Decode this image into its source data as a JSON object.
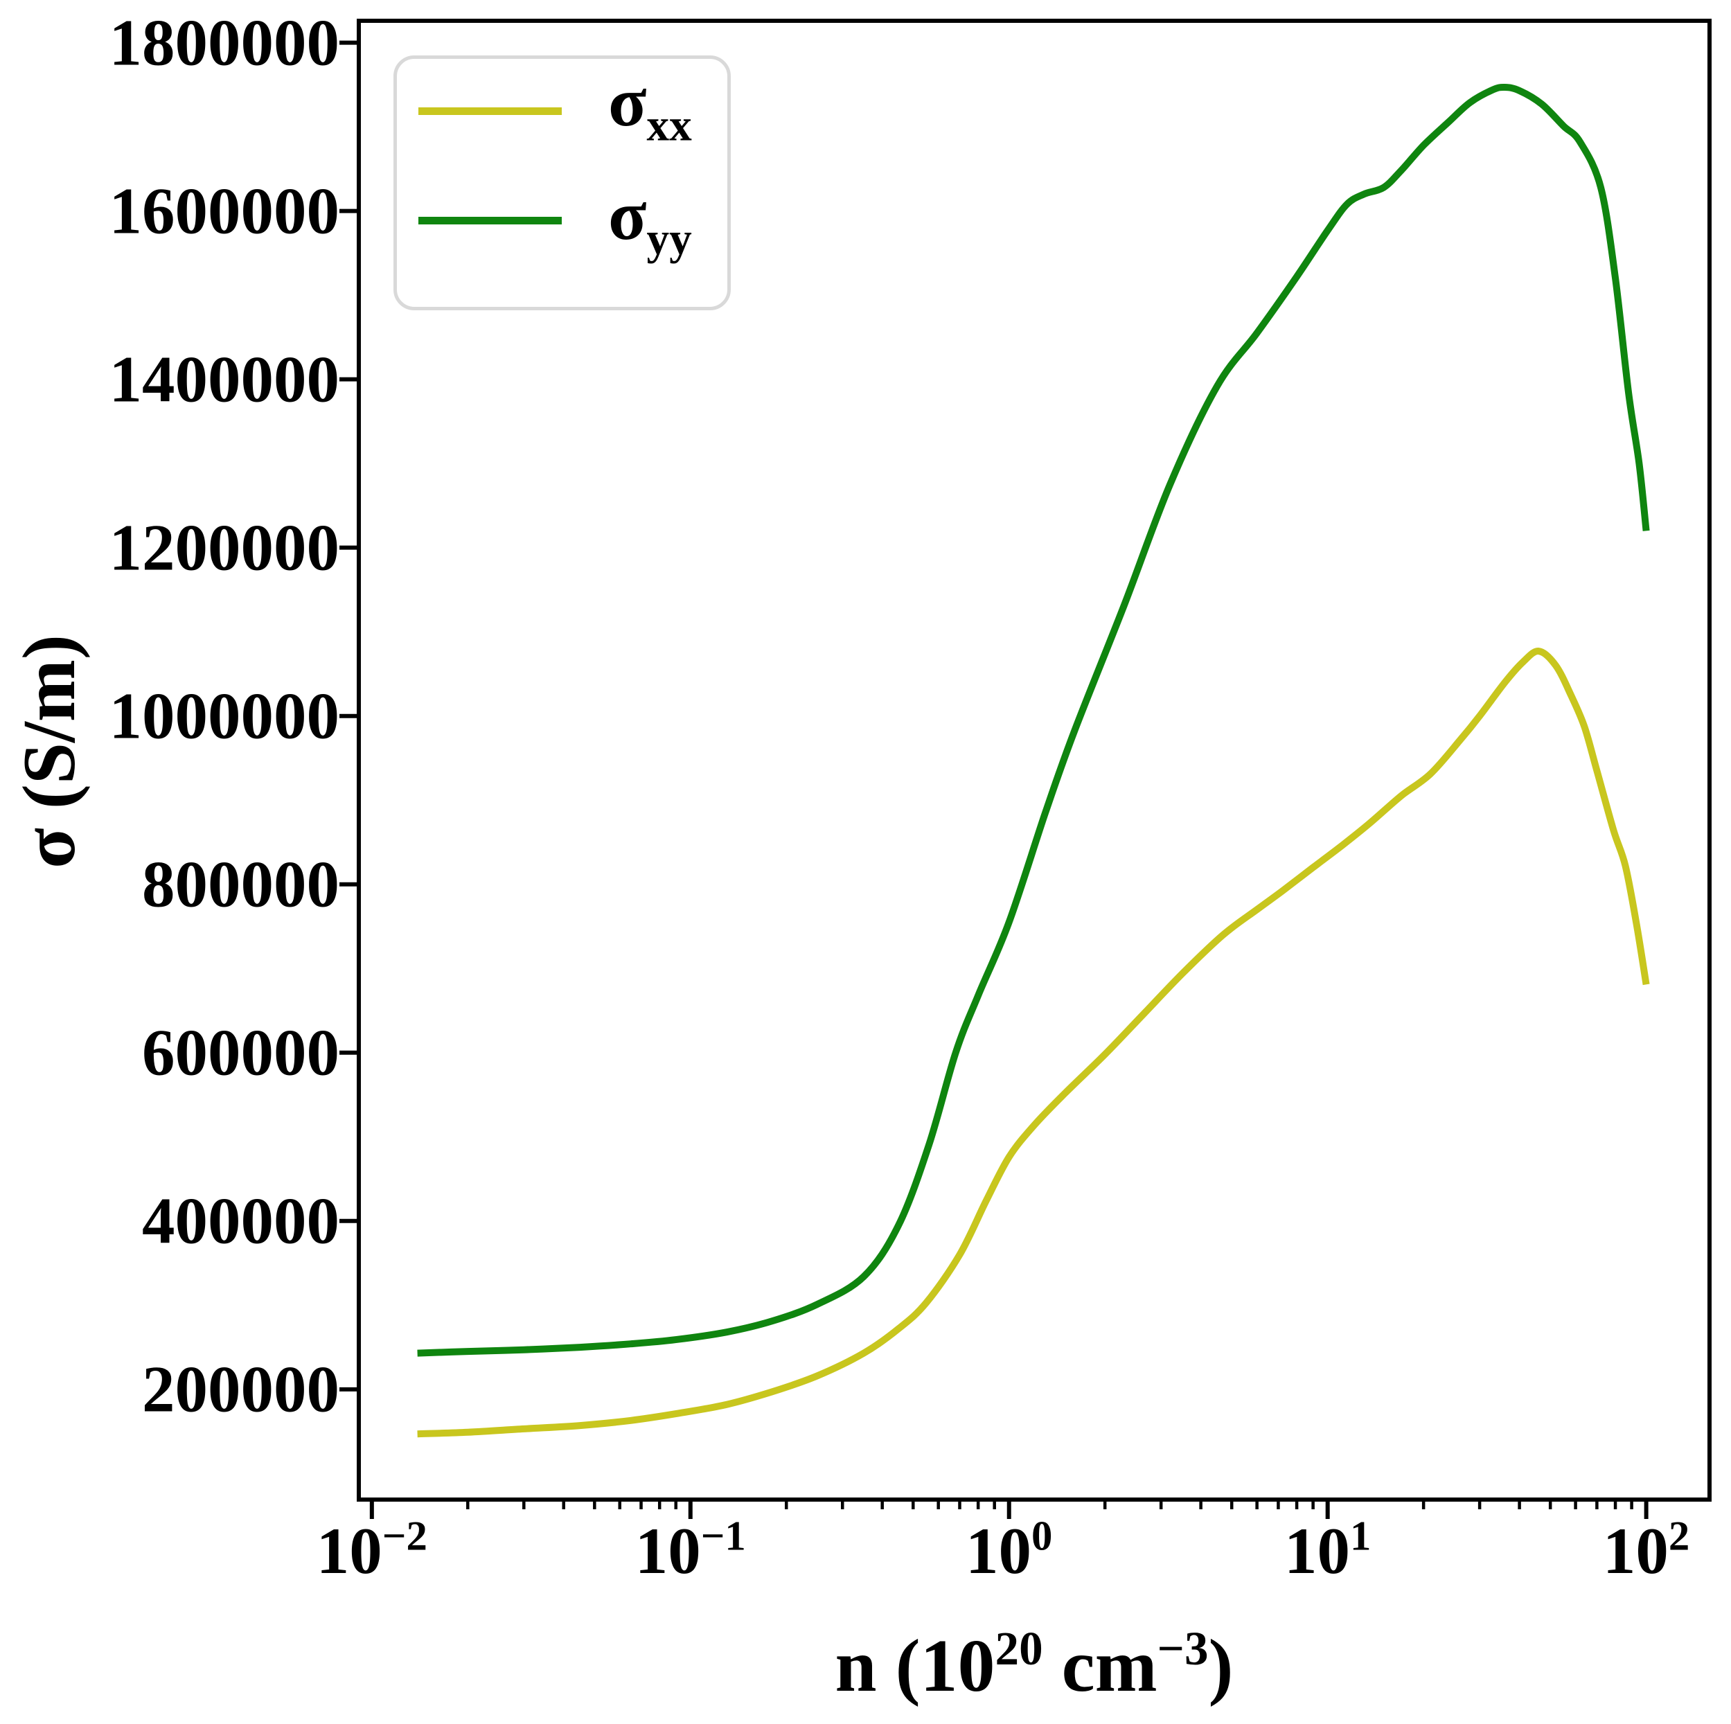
{
  "figure": {
    "background": "#ffffff",
    "text_color": "#000000",
    "spine_color": "#000000",
    "legend_border_color": "#d9d9d9"
  },
  "chart_data": {
    "type": "line",
    "title": "",
    "xscale": "log",
    "grid": false,
    "legend_position": "upper-left",
    "xlim": [
      0.0091,
      158
    ],
    "ylim": [
      69000,
      1826000
    ],
    "xlabel_parts": {
      "prefix": "n (10",
      "sup1": "20",
      "mid": " cm",
      "sup2": "−3",
      "suffix": ")"
    },
    "ylabel": "σ (S/m)",
    "xticks": {
      "base": "10",
      "exponents": [
        "−2",
        "−1",
        "0",
        "1",
        "2"
      ],
      "values": [
        0.01,
        0.1,
        1,
        10,
        100
      ]
    },
    "minor_tick_multiples": [
      2,
      3,
      4,
      5,
      6,
      7,
      8,
      9
    ],
    "minor_tick_decades": [
      0.01,
      0.1,
      1,
      10
    ],
    "yticks": [
      {
        "value": 200000,
        "label": "200000"
      },
      {
        "value": 400000,
        "label": "400000"
      },
      {
        "value": 600000,
        "label": "600000"
      },
      {
        "value": 800000,
        "label": "800000"
      },
      {
        "value": 1000000,
        "label": "1000000"
      },
      {
        "value": 1200000,
        "label": "1200000"
      },
      {
        "value": 1400000,
        "label": "1400000"
      },
      {
        "value": 1600000,
        "label": "1600000"
      },
      {
        "value": 1800000,
        "label": "1800000"
      }
    ],
    "series": [
      {
        "name": "sigma_xx",
        "color": "#c8c61e",
        "line_width": 10,
        "points": [
          [
            0.0139,
            147000
          ],
          [
            0.02,
            149000
          ],
          [
            0.03,
            153000
          ],
          [
            0.045,
            157000
          ],
          [
            0.065,
            163000
          ],
          [
            0.09,
            171000
          ],
          [
            0.13,
            182000
          ],
          [
            0.18,
            197000
          ],
          [
            0.25,
            216000
          ],
          [
            0.35,
            243000
          ],
          [
            0.45,
            272000
          ],
          [
            0.55,
            303000
          ],
          [
            0.7,
            360000
          ],
          [
            0.85,
            425000
          ],
          [
            1.0,
            476000
          ],
          [
            1.2,
            514000
          ],
          [
            1.5,
            552000
          ],
          [
            2.0,
            598000
          ],
          [
            2.6,
            643000
          ],
          [
            3.5,
            694000
          ],
          [
            4.7,
            740000
          ],
          [
            6.0,
            770000
          ],
          [
            7.2,
            792000
          ],
          [
            9.0,
            820000
          ],
          [
            11,
            845000
          ],
          [
            13.5,
            872000
          ],
          [
            17,
            905000
          ],
          [
            21,
            931000
          ],
          [
            26,
            971000
          ],
          [
            30,
            1000000
          ],
          [
            36,
            1040000
          ],
          [
            41,
            1064000
          ],
          [
            46,
            1077000
          ],
          [
            52,
            1060000
          ],
          [
            58,
            1025000
          ],
          [
            64,
            987000
          ],
          [
            70,
            935000
          ],
          [
            79,
            864000
          ],
          [
            86,
            822000
          ],
          [
            93,
            755000
          ],
          [
            100,
            681000
          ]
        ]
      },
      {
        "name": "sigma_yy",
        "color": "#0f850f",
        "line_width": 10,
        "points": [
          [
            0.0139,
            243000
          ],
          [
            0.02,
            245000
          ],
          [
            0.03,
            247000
          ],
          [
            0.045,
            250000
          ],
          [
            0.065,
            254000
          ],
          [
            0.09,
            259000
          ],
          [
            0.13,
            268000
          ],
          [
            0.18,
            281000
          ],
          [
            0.25,
            301000
          ],
          [
            0.35,
            334000
          ],
          [
            0.45,
            395000
          ],
          [
            0.56,
            490000
          ],
          [
            0.68,
            600000
          ],
          [
            0.8,
            668000
          ],
          [
            1.0,
            755000
          ],
          [
            1.3,
            885000
          ],
          [
            1.6,
            981000
          ],
          [
            2.3,
            1132000
          ],
          [
            3.2,
            1275000
          ],
          [
            4.5,
            1392000
          ],
          [
            6.0,
            1455000
          ],
          [
            8.0,
            1522000
          ],
          [
            10,
            1577000
          ],
          [
            11.5,
            1608000
          ],
          [
            13,
            1620000
          ],
          [
            15,
            1628000
          ],
          [
            17,
            1648000
          ],
          [
            20,
            1678000
          ],
          [
            24,
            1706000
          ],
          [
            28,
            1729000
          ],
          [
            33,
            1744000
          ],
          [
            36,
            1747000
          ],
          [
            40,
            1743000
          ],
          [
            47,
            1727000
          ],
          [
            55,
            1701000
          ],
          [
            62,
            1682000
          ],
          [
            72,
            1628000
          ],
          [
            80,
            1520000
          ],
          [
            88,
            1384000
          ],
          [
            95,
            1300000
          ],
          [
            100,
            1220000
          ]
        ]
      }
    ]
  },
  "legend": {
    "entries": [
      {
        "symbol": "σ",
        "sub": "xx",
        "series": "sigma_xx",
        "color": "#c8c61e"
      },
      {
        "symbol": "σ",
        "sub": "yy",
        "series": "sigma_yy",
        "color": "#0f850f"
      }
    ]
  }
}
